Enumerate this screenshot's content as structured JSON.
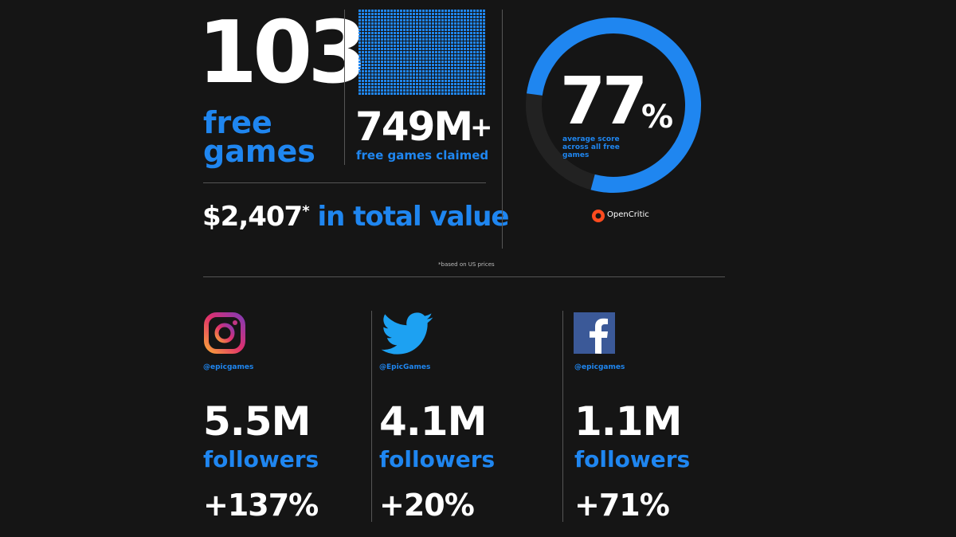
{
  "games": {
    "count": "103",
    "label": "free games"
  },
  "claimed": {
    "count": "749M",
    "plus": "+",
    "label": "free games claimed"
  },
  "value": {
    "amount": "$2,407",
    "mark": "*",
    "label": "in total value"
  },
  "score": {
    "value": 77,
    "unit": "%",
    "caption": "average score across all free games",
    "source": "OpenCritic"
  },
  "footnote": "*based on US prices",
  "social": [
    {
      "handle": "@epicgames",
      "followers": "5.5M",
      "label": "followers",
      "growth": "+137%"
    },
    {
      "handle": "@EpicGames",
      "followers": "4.1M",
      "label": "followers",
      "growth": "+20%"
    },
    {
      "handle": "@epicgames",
      "followers": "1.1M",
      "label": "followers",
      "growth": "+71%"
    }
  ]
}
